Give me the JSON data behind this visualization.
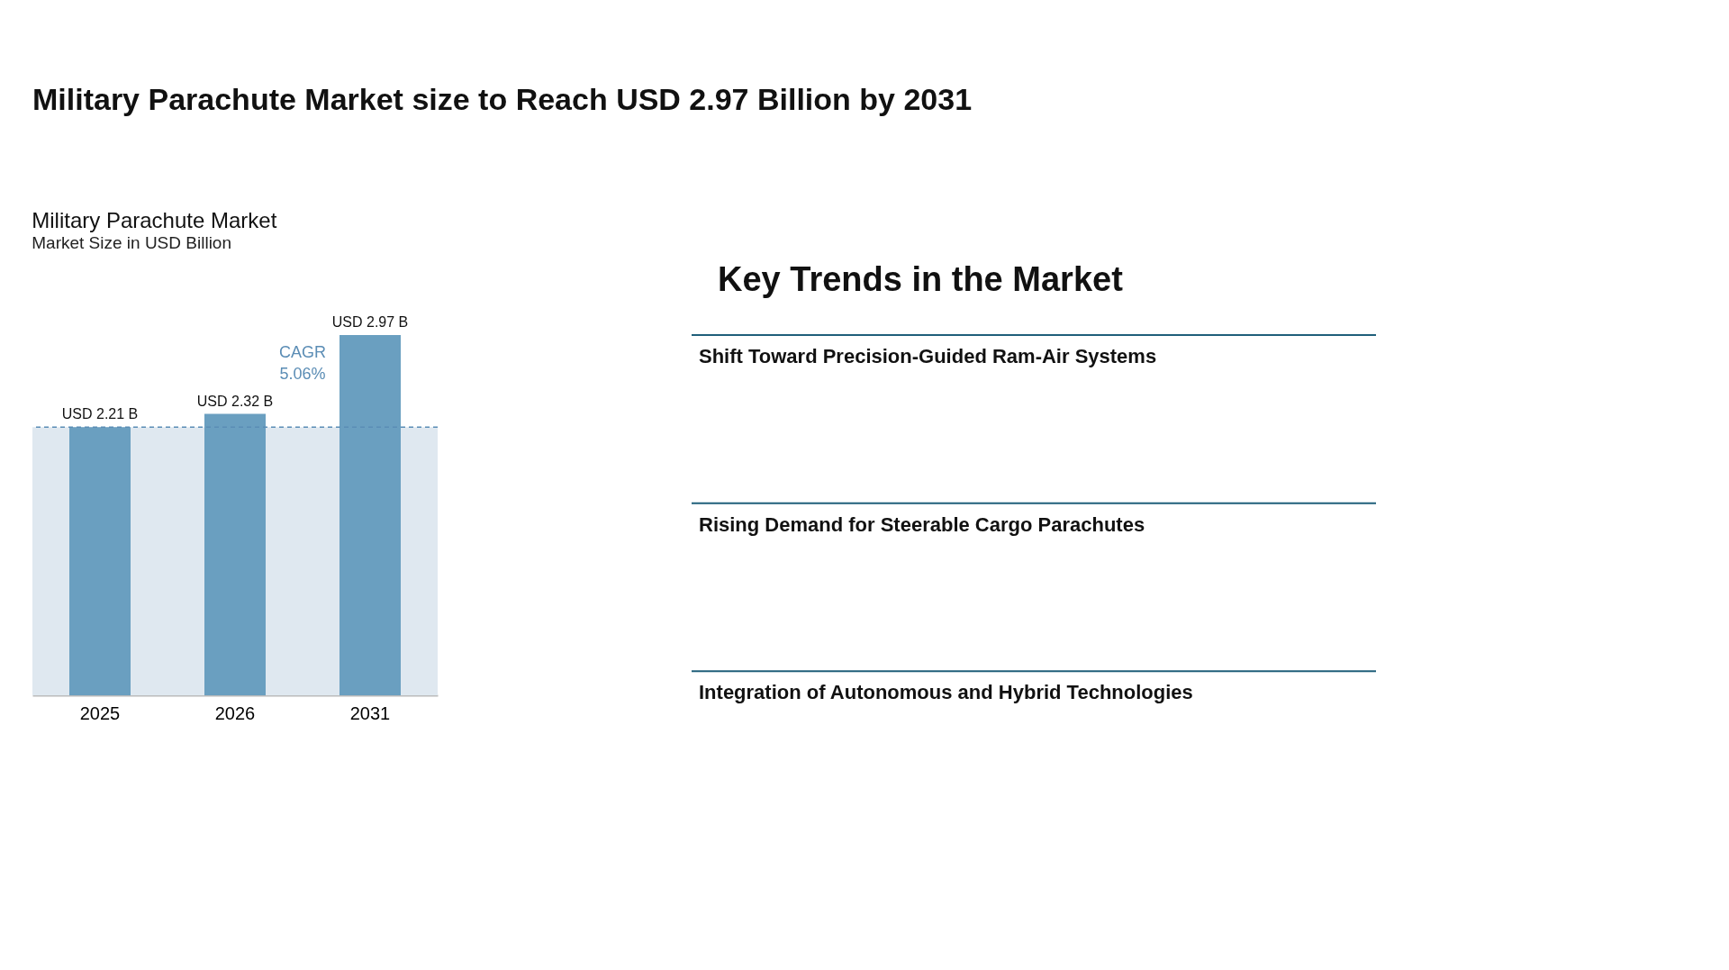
{
  "chart_data": [
    {
      "type": "other",
      "title": "Military Parachute Market size to Reach USD 2.97 Billion by 2031"
    },
    {
      "type": "bar",
      "title": "Military Parachute Market",
      "subtitle": "Market Size in USD Billion",
      "categories": [
        "2025",
        "2026",
        "2031"
      ],
      "values": [
        2.21,
        2.32,
        2.97
      ],
      "color": "#6a9fc0",
      "value_labels": [
        "USD 2.21 B",
        "USD 2.32 B",
        "USD 2.97 B"
      ],
      "tick_labels": "x",
      "grid": false,
      "bands": [
        {
          "axis": "y",
          "from": 0,
          "to": 2.21,
          "color": "#dfe8f0"
        }
      ],
      "ref_lines": [
        {
          "axis": "y",
          "value": 2.21,
          "color": "#5b8db5",
          "line_style": "dashed"
        }
      ],
      "annotations": [
        "CAGR\n5.06%"
      ]
    },
    {
      "type": "other",
      "title": "Key Trends in the Market",
      "annotations": [
        "Shift Toward Precision-Guided Ram-Air Systems",
        "Rising Demand for Steerable Cargo Parachutes",
        "Integration of Autonomous and Hybrid Technologies"
      ]
    }
  ]
}
